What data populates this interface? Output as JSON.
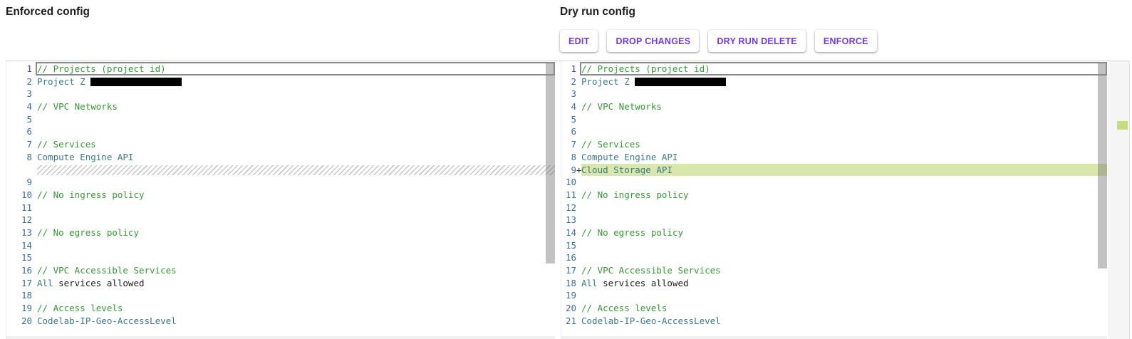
{
  "left_section": {
    "title": "Enforced config"
  },
  "right_section": {
    "title": "Dry run config",
    "buttons": [
      {
        "label": "EDIT"
      },
      {
        "label": "DROP CHANGES"
      },
      {
        "label": "DRY RUN DELETE"
      },
      {
        "label": "ENFORCE"
      }
    ]
  },
  "colors": {
    "accent_purple": "#7238e8",
    "comment_green": "#349a33",
    "identifier_teal": "#3a7b87",
    "line_number_blue": "#3e6d98",
    "added_line_bg": "#d9e7ac",
    "ruler_marker_green": "#c3df7d"
  },
  "editor": {
    "panes": [
      {
        "id": "enforced",
        "rows": [
          {
            "n": "1",
            "cur": true,
            "t": [
              [
                "c",
                "// Projects (project id)"
              ]
            ]
          },
          {
            "n": "2",
            "t": [
              [
                "i",
                "Project Z "
              ],
              [
                "r",
                128
              ]
            ]
          },
          {
            "n": "3",
            "t": []
          },
          {
            "n": "4",
            "t": [
              [
                "c",
                "// VPC Networks"
              ]
            ]
          },
          {
            "n": "5",
            "t": []
          },
          {
            "n": "6",
            "t": []
          },
          {
            "n": "7",
            "t": [
              [
                "c",
                "// Services"
              ]
            ]
          },
          {
            "n": "8",
            "t": [
              [
                "i",
                "Compute Engine API"
              ]
            ]
          },
          {
            "hatch": true
          },
          {
            "n": "9",
            "t": []
          },
          {
            "n": "10",
            "t": [
              [
                "c",
                "// No ingress policy"
              ]
            ]
          },
          {
            "n": "11",
            "t": []
          },
          {
            "n": "12",
            "t": []
          },
          {
            "n": "13",
            "t": [
              [
                "c",
                "// No egress policy"
              ]
            ]
          },
          {
            "n": "14",
            "t": []
          },
          {
            "n": "15",
            "t": []
          },
          {
            "n": "16",
            "t": [
              [
                "c",
                "// VPC Accessible Services"
              ]
            ]
          },
          {
            "n": "17",
            "t": [
              [
                "i",
                "All"
              ],
              [
                "p",
                " services allowed"
              ]
            ]
          },
          {
            "n": "18",
            "t": []
          },
          {
            "n": "19",
            "t": [
              [
                "c",
                "// Access levels"
              ]
            ]
          },
          {
            "n": "20",
            "t": [
              [
                "i",
                "Codelab-IP-Geo-AccessLevel"
              ]
            ]
          }
        ]
      },
      {
        "id": "dryrun",
        "rows": [
          {
            "n": "1",
            "cur": true,
            "t": [
              [
                "c",
                "// Projects (project id)"
              ]
            ]
          },
          {
            "n": "2",
            "t": [
              [
                "i",
                "Project Z "
              ],
              [
                "r",
                128
              ]
            ]
          },
          {
            "n": "3",
            "t": []
          },
          {
            "n": "4",
            "t": [
              [
                "c",
                "// VPC Networks"
              ]
            ]
          },
          {
            "n": "5",
            "t": []
          },
          {
            "n": "6",
            "t": []
          },
          {
            "n": "7",
            "t": [
              [
                "c",
                "// Services"
              ]
            ]
          },
          {
            "n": "8",
            "t": [
              [
                "i",
                "Compute Engine API"
              ]
            ]
          },
          {
            "n": "9",
            "m": "+",
            "add": true,
            "t": [
              [
                "i",
                "Cloud Storage API"
              ]
            ]
          },
          {
            "n": "10",
            "t": []
          },
          {
            "n": "11",
            "t": [
              [
                "c",
                "// No ingress policy"
              ]
            ]
          },
          {
            "n": "12",
            "t": []
          },
          {
            "n": "13",
            "t": []
          },
          {
            "n": "14",
            "t": [
              [
                "c",
                "// No egress policy"
              ]
            ]
          },
          {
            "n": "15",
            "t": []
          },
          {
            "n": "16",
            "t": []
          },
          {
            "n": "17",
            "t": [
              [
                "c",
                "// VPC Accessible Services"
              ]
            ]
          },
          {
            "n": "18",
            "t": [
              [
                "i",
                "All"
              ],
              [
                "p",
                " services allowed"
              ]
            ]
          },
          {
            "n": "19",
            "t": []
          },
          {
            "n": "20",
            "t": [
              [
                "c",
                "// Access levels"
              ]
            ]
          },
          {
            "n": "21",
            "t": [
              [
                "i",
                "Codelab-IP-Geo-AccessLevel"
              ]
            ]
          }
        ]
      }
    ]
  }
}
